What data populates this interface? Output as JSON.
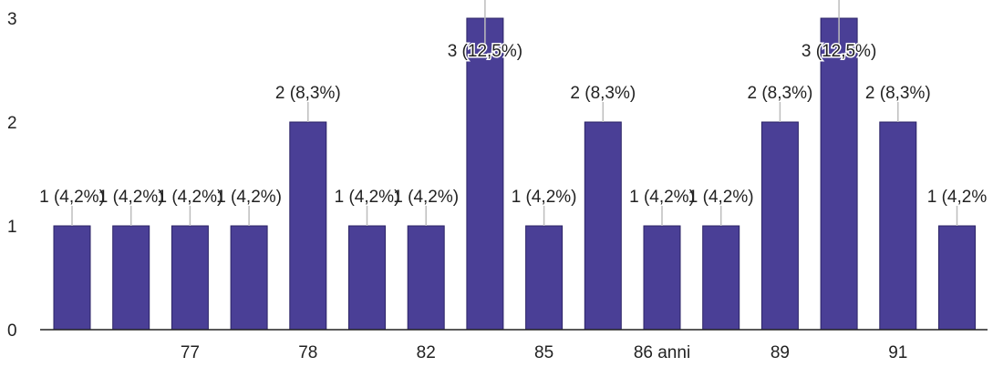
{
  "chart_data": {
    "type": "bar",
    "categories": [
      "",
      "",
      "77",
      "",
      "78",
      "",
      "82",
      "",
      "85",
      "",
      "86 anni",
      "",
      "89",
      "",
      "91",
      ""
    ],
    "values": [
      1,
      1,
      1,
      1,
      2,
      1,
      1,
      3,
      1,
      2,
      1,
      1,
      2,
      3,
      2,
      1
    ],
    "data_labels": [
      "1 (4,2%)",
      "1 (4,2%)",
      "1 (4,2%)",
      "1 (4,2%)",
      "2 (8,3%)",
      "1 (4,2%)",
      "1 (4,2%)",
      "3 (12,5%)",
      "1 (4,2%)",
      "2 (8,3%)",
      "1 (4,2%)",
      "1 (4,2%)",
      "2 (8,3%)",
      "3 (12,5%)",
      "2 (8,3%)",
      "1 (4,2%"
    ],
    "y_ticks": [
      "0",
      "1",
      "2",
      "3"
    ],
    "ylim": [
      0,
      3
    ],
    "bar_color": "#4a3f96",
    "title": "",
    "xlabel": "",
    "ylabel": "",
    "grid": false
  }
}
